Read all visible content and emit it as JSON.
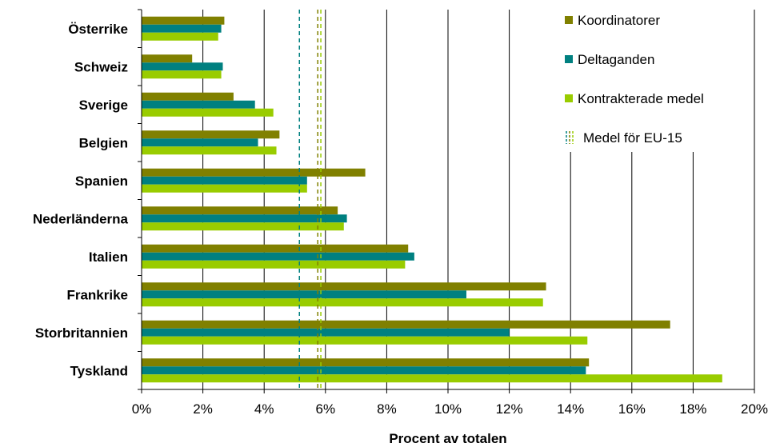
{
  "chart_data": {
    "type": "bar",
    "orientation": "horizontal",
    "categories": [
      "Österrike",
      "Schweiz",
      "Sverige",
      "Belgien",
      "Spanien",
      "Nederländerna",
      "Italien",
      "Frankrike",
      "Storbritannien",
      "Tyskland"
    ],
    "series": [
      {
        "name": "Koordinatorer",
        "color": "#808000",
        "values": [
          2.7,
          1.65,
          3.0,
          4.5,
          7.3,
          6.4,
          8.7,
          13.2,
          17.25,
          14.6
        ]
      },
      {
        "name": "Deltaganden",
        "color": "#008080",
        "values": [
          2.6,
          2.65,
          3.7,
          3.8,
          5.4,
          6.7,
          8.9,
          10.6,
          12.0,
          14.5
        ]
      },
      {
        "name": "Kontrakterade medel",
        "color": "#99CC00",
        "values": [
          2.5,
          2.6,
          4.3,
          4.4,
          5.4,
          6.6,
          8.6,
          13.1,
          14.55,
          18.95
        ]
      }
    ],
    "reference_lines": {
      "label": "Medel för EU-15",
      "lines": [
        {
          "color": "#008080",
          "value": 5.15
        },
        {
          "color": "#808000",
          "value": 5.75
        },
        {
          "color": "#99CC00",
          "value": 5.85
        }
      ]
    },
    "xlabel": "Procent av totalen",
    "ylabel": "",
    "xlim": [
      0,
      20
    ],
    "xticks": [
      "0%",
      "2%",
      "4%",
      "6%",
      "8%",
      "10%",
      "12%",
      "14%",
      "16%",
      "18%",
      "20%"
    ],
    "grid": true,
    "legend_position": "top-right"
  }
}
